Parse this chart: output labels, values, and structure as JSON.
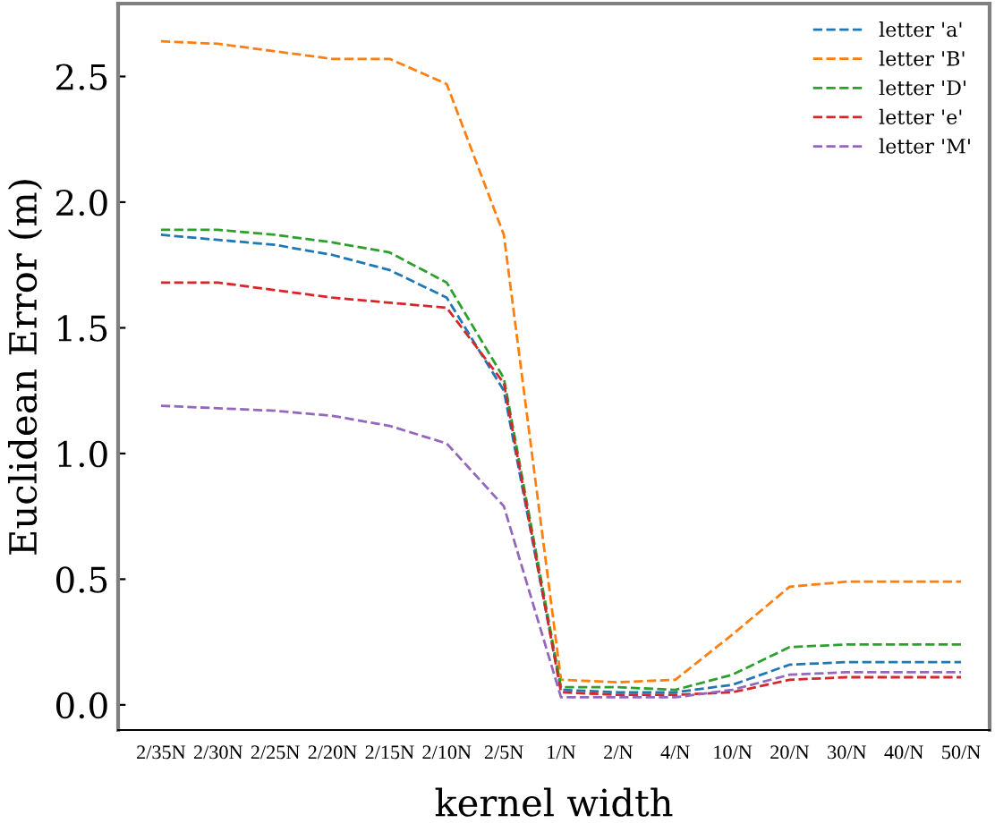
{
  "chart_data": {
    "type": "line",
    "xlabel": "kernel width",
    "ylabel": "Euclidean Error (m)",
    "categories": [
      "2/35N",
      "2/30N",
      "2/25N",
      "2/20N",
      "2/15N",
      "2/10N",
      "2/5N",
      "1/N",
      "2/N",
      "4/N",
      "10/N",
      "20/N",
      "30/N",
      "40/N",
      "50/N"
    ],
    "series": [
      {
        "name": "letter 'a'",
        "color": "#1f77b4",
        "values": [
          1.87,
          1.85,
          1.83,
          1.79,
          1.73,
          1.62,
          1.25,
          0.06,
          0.05,
          0.05,
          0.08,
          0.16,
          0.17,
          0.17,
          0.17
        ]
      },
      {
        "name": "letter 'B'",
        "color": "#ff7f0e",
        "values": [
          2.64,
          2.63,
          2.6,
          2.57,
          2.57,
          2.47,
          1.87,
          0.1,
          0.09,
          0.1,
          0.28,
          0.47,
          0.49,
          0.49,
          0.49
        ]
      },
      {
        "name": "letter 'D'",
        "color": "#2ca02c",
        "values": [
          1.89,
          1.89,
          1.87,
          1.84,
          1.8,
          1.68,
          1.3,
          0.07,
          0.07,
          0.06,
          0.12,
          0.23,
          0.24,
          0.24,
          0.24
        ]
      },
      {
        "name": "letter 'e'",
        "color": "#d62728",
        "values": [
          1.68,
          1.68,
          1.65,
          1.62,
          1.6,
          1.58,
          1.28,
          0.05,
          0.04,
          0.04,
          0.05,
          0.1,
          0.11,
          0.11,
          0.11
        ]
      },
      {
        "name": "letter 'M'",
        "color": "#9467bd",
        "values": [
          1.19,
          1.18,
          1.17,
          1.15,
          1.11,
          1.04,
          0.79,
          0.03,
          0.03,
          0.03,
          0.06,
          0.12,
          0.13,
          0.13,
          0.13
        ]
      }
    ],
    "ylim": [
      -0.1,
      2.79
    ],
    "yticks": [
      {
        "value": 0,
        "label": "0.0"
      },
      {
        "value": 0.5,
        "label": "0.5"
      },
      {
        "value": 1,
        "label": "1.0"
      },
      {
        "value": 1.5,
        "label": "1.5"
      },
      {
        "value": 2,
        "label": "2.0"
      },
      {
        "value": 2.5,
        "label": "2.5"
      }
    ],
    "legend": "top right",
    "line_style": "dashed",
    "marker": "none",
    "grid": false
  }
}
